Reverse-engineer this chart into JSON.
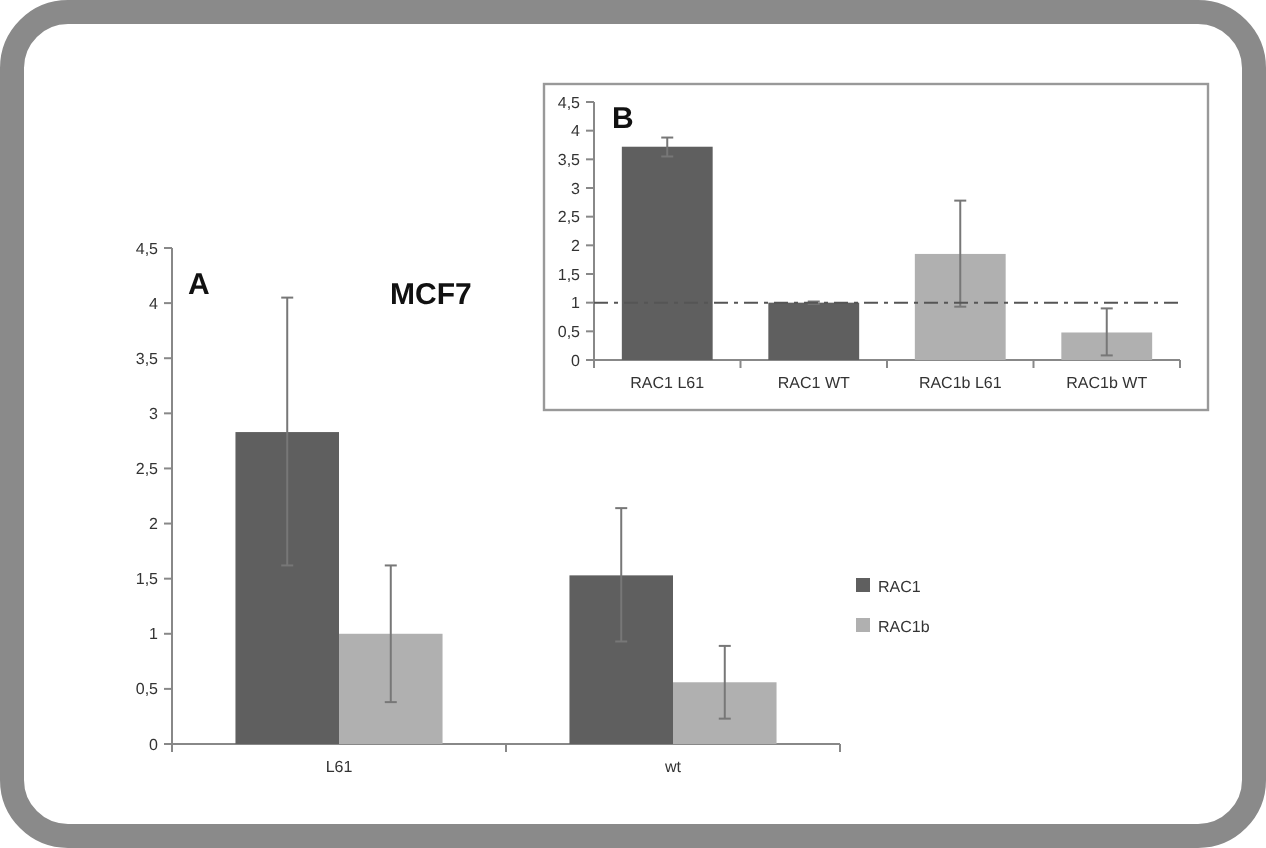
{
  "chart_data": [
    {
      "type": "bar",
      "title": "MCF7",
      "annotations": [
        "A"
      ],
      "categories": [
        "L61",
        "wt"
      ],
      "series": [
        {
          "name": "RAC1",
          "color": "#5f5f5f",
          "values": [
            2.83,
            1.53
          ],
          "errors": [
            [
              1.62,
              4.05
            ],
            [
              0.93,
              2.14
            ]
          ]
        },
        {
          "name": "RAC1b",
          "color": "#b0b0b0",
          "values": [
            1.0,
            0.56
          ],
          "errors": [
            [
              0.38,
              1.62
            ],
            [
              0.23,
              0.89
            ]
          ]
        }
      ],
      "ylim": [
        0,
        4.5
      ],
      "yticks": [
        0,
        {
          "value": 0.5,
          "label": "0,5"
        },
        1,
        {
          "value": 1.5,
          "label": "1,5"
        },
        2,
        {
          "value": 2.5,
          "label": "2,5"
        },
        3,
        {
          "value": 3.5,
          "label": "3,5"
        },
        4,
        {
          "value": 4.5,
          "label": "4,5"
        }
      ],
      "legend": "right"
    },
    {
      "type": "bar",
      "annotations": [
        "B"
      ],
      "categories": [
        "RAC1 L61",
        "RAC1 WT",
        "RAC1b L61",
        "RAC1b WT"
      ],
      "values": [
        3.72,
        1.0,
        1.85,
        0.48
      ],
      "colors": [
        "#5f5f5f",
        "#5f5f5f",
        "#b0b0b0",
        "#b0b0b0"
      ],
      "errors": [
        [
          3.55,
          3.88
        ],
        [
          0.98,
          1.02
        ],
        [
          0.93,
          2.78
        ],
        [
          0.08,
          0.9
        ]
      ],
      "ylim": [
        0,
        4.5
      ],
      "yticks": [
        0,
        {
          "value": 0.5,
          "label": "0,5"
        },
        1,
        {
          "value": 1.5,
          "label": "1,5"
        },
        2,
        {
          "value": 2.5,
          "label": "2,5"
        },
        3,
        {
          "value": 3.5,
          "label": "3,5"
        },
        4,
        {
          "value": 4.5,
          "label": "4,5"
        }
      ],
      "ref_lines": [
        {
          "axis": "y",
          "value": 1,
          "color": "#555555",
          "line_style": "dashed"
        }
      ]
    }
  ]
}
